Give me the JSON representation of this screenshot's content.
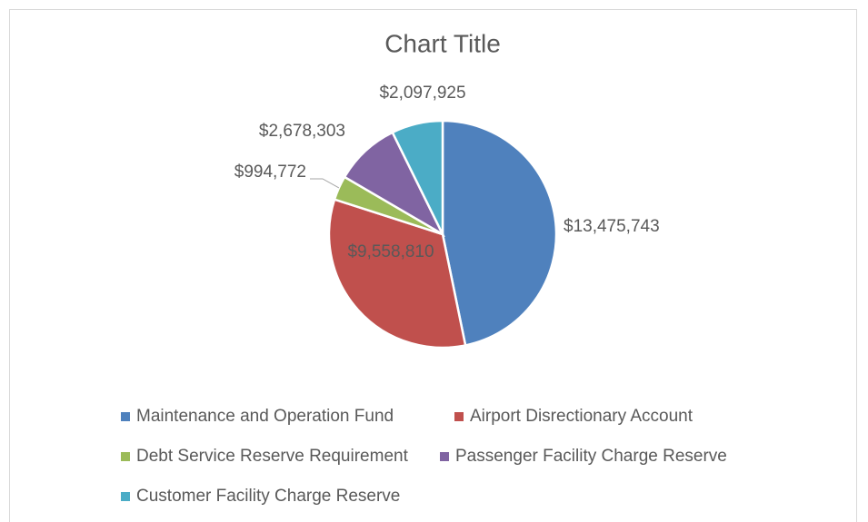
{
  "chart_data": {
    "type": "pie",
    "title": "Chart Title",
    "categories": [
      "Maintenance and Operation Fund",
      "Airport Disrectionary Account",
      "Debt Service Reserve Requirement",
      "Passenger Facility Charge Reserve",
      "Customer Facility Charge Reserve"
    ],
    "values": [
      13475743,
      9558810,
      994772,
      2678303,
      2097925
    ],
    "value_labels": [
      "$13,475,743",
      "$9,558,810",
      "$994,772",
      "$2,678,303",
      "$2,097,925"
    ],
    "colors": [
      "#4f81bd",
      "#c0504d",
      "#9bbb59",
      "#8064a2",
      "#4bacc6"
    ],
    "legend": "bottom"
  }
}
